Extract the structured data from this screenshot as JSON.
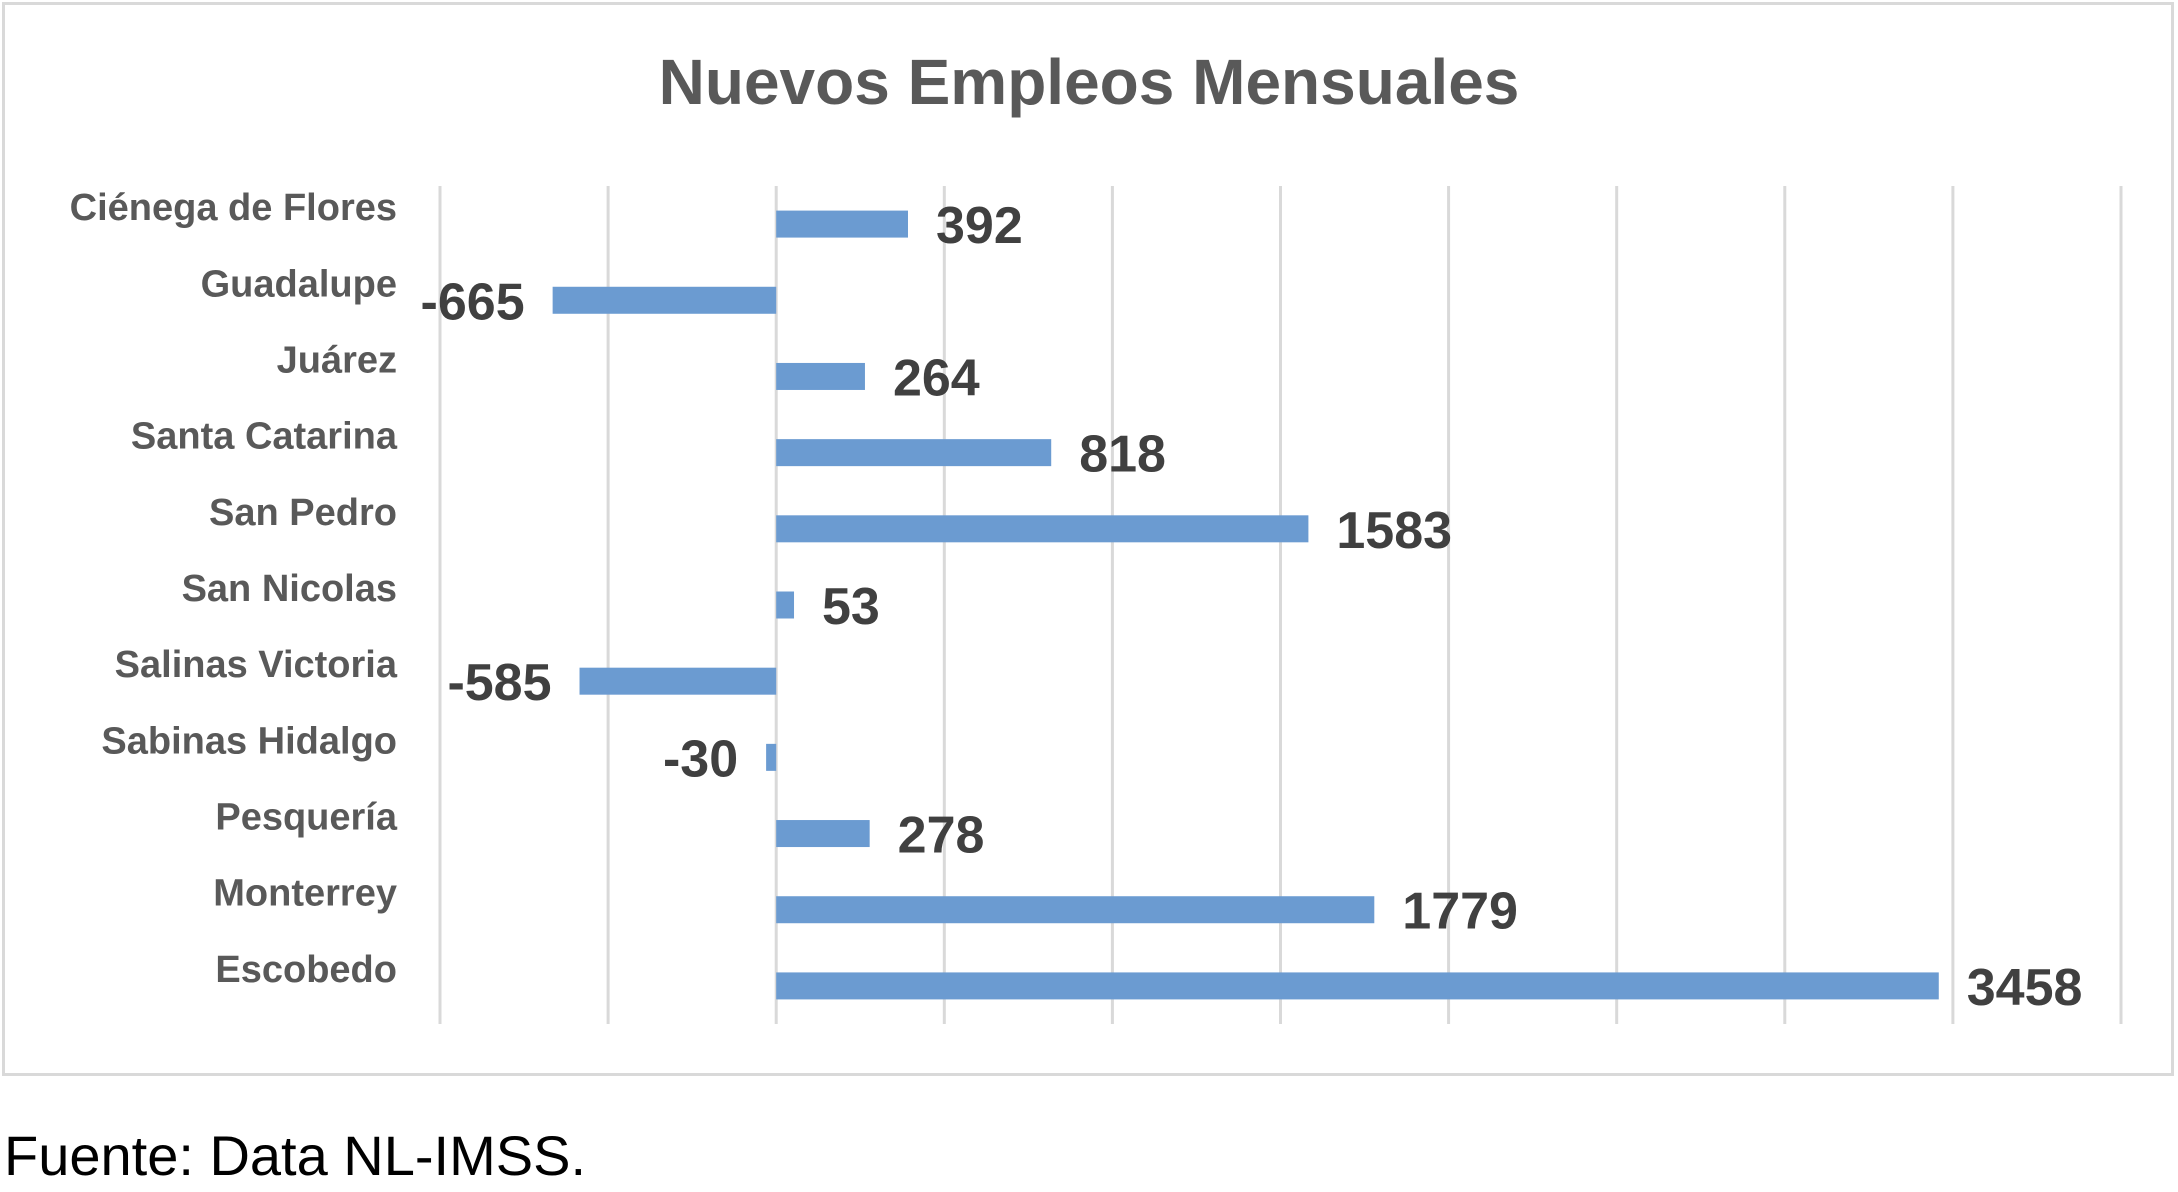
{
  "chart_data": {
    "type": "bar",
    "orientation": "horizontal",
    "title": "Nuevos Empleos Mensuales",
    "categories": [
      "Ciénega de Flores",
      "Guadalupe",
      "Juárez",
      "Santa Catarina",
      "San Pedro",
      "San Nicolas",
      "Salinas Victoria",
      "Sabinas Hidalgo",
      "Pesquería",
      "Monterrey",
      "Escobedo"
    ],
    "values": [
      392,
      -665,
      264,
      818,
      1583,
      53,
      -585,
      -30,
      278,
      1779,
      3458
    ],
    "data_labels": [
      "392",
      "-665",
      "264",
      "818",
      "1583",
      "53",
      "-585",
      "-30",
      "278",
      "1779",
      "3458"
    ],
    "xlim": [
      -1000,
      4000
    ],
    "grid": true,
    "legend": "none",
    "bar_color": "#6b9bd1",
    "gridline_color": "#d9d9d9"
  },
  "source_note": "Fuente: Data NL-IMSS."
}
